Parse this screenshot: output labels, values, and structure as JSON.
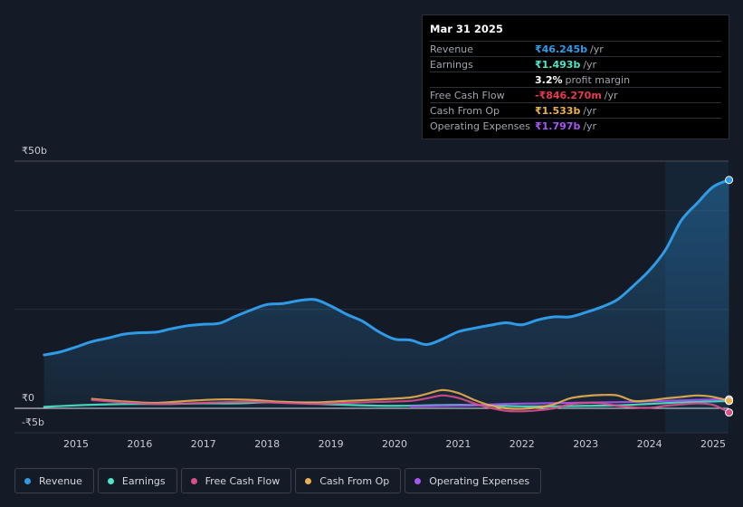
{
  "tooltip": {
    "date": "Mar 31 2025",
    "rows": [
      {
        "label": "Revenue",
        "value": "₹46.245b",
        "unit": "/yr",
        "color": "#2f9ae6"
      },
      {
        "label": "Earnings",
        "value": "₹1.493b",
        "unit": "/yr",
        "color": "#4ee5c9"
      },
      {
        "label": "",
        "value": "3.2%",
        "unit": "profit margin",
        "color": "#ffffff"
      },
      {
        "label": "Free Cash Flow",
        "value": "-₹846.270m",
        "unit": "/yr",
        "color": "#e8384f"
      },
      {
        "label": "Cash From Op",
        "value": "₹1.533b",
        "unit": "/yr",
        "color": "#e9b04f"
      },
      {
        "label": "Operating Expenses",
        "value": "₹1.797b",
        "unit": "/yr",
        "color": "#a855f7"
      }
    ]
  },
  "legend": [
    {
      "label": "Revenue",
      "color": "#2f9ae6"
    },
    {
      "label": "Earnings",
      "color": "#4ee5c9"
    },
    {
      "label": "Free Cash Flow",
      "color": "#d94f8c"
    },
    {
      "label": "Cash From Op",
      "color": "#e9b04f"
    },
    {
      "label": "Operating Expenses",
      "color": "#a855f7"
    }
  ],
  "chart_data": {
    "type": "line",
    "title": "",
    "y_tick_labels": [
      "₹50b",
      "₹0",
      "-₹5b"
    ],
    "y_ticks": [
      50,
      0,
      -5
    ],
    "ylim": [
      -5,
      50
    ],
    "xlim": [
      2014.5,
      2025.25
    ],
    "x_ticks": [
      2015,
      2016,
      2017,
      2018,
      2019,
      2020,
      2021,
      2022,
      2023,
      2024,
      2025
    ],
    "x_tick_labels": [
      "2015",
      "2016",
      "2017",
      "2018",
      "2019",
      "2020",
      "2021",
      "2022",
      "2023",
      "2024",
      "2025"
    ],
    "forecast_shade_start": 2024.25,
    "series": [
      {
        "name": "Revenue",
        "color": "#2f9ae6",
        "area": true,
        "x": [
          2014.5,
          2014.75,
          2015.0,
          2015.25,
          2015.5,
          2015.75,
          2016.0,
          2016.25,
          2016.5,
          2016.75,
          2017.0,
          2017.25,
          2017.5,
          2017.75,
          2018.0,
          2018.25,
          2018.5,
          2018.75,
          2019.0,
          2019.25,
          2019.5,
          2019.75,
          2020.0,
          2020.25,
          2020.5,
          2020.75,
          2021.0,
          2021.25,
          2021.5,
          2021.75,
          2022.0,
          2022.25,
          2022.5,
          2022.75,
          2023.0,
          2023.25,
          2023.5,
          2023.75,
          2024.0,
          2024.25,
          2024.5,
          2024.75,
          2025.0,
          2025.25
        ],
        "y": [
          10.8,
          11.4,
          12.4,
          13.5,
          14.2,
          15.0,
          15.3,
          15.4,
          16.1,
          16.7,
          17.0,
          17.2,
          18.6,
          19.9,
          21.0,
          21.2,
          21.8,
          22.0,
          20.7,
          19.0,
          17.6,
          15.5,
          14.0,
          13.8,
          12.9,
          14.0,
          15.5,
          16.2,
          16.8,
          17.3,
          16.9,
          17.9,
          18.5,
          18.5,
          19.4,
          20.5,
          22.0,
          24.8,
          27.9,
          32.0,
          38.0,
          41.5,
          44.8,
          46.2
        ]
      },
      {
        "name": "Earnings",
        "color": "#4ee5c9",
        "area": false,
        "x": [
          2014.5,
          2015.0,
          2015.5,
          2016.0,
          2016.5,
          2017.0,
          2017.5,
          2018.0,
          2018.5,
          2019.0,
          2019.5,
          2020.0,
          2020.5,
          2021.0,
          2021.5,
          2022.0,
          2022.5,
          2023.0,
          2023.5,
          2024.0,
          2024.5,
          2025.0,
          2025.25
        ],
        "y": [
          0.3,
          0.6,
          0.8,
          0.9,
          0.9,
          1.0,
          1.0,
          1.2,
          1.1,
          0.8,
          0.6,
          0.5,
          0.6,
          0.7,
          0.6,
          0.4,
          0.4,
          0.5,
          0.6,
          0.9,
          1.2,
          1.4,
          1.49
        ]
      },
      {
        "name": "Free Cash Flow",
        "color": "#d94f8c",
        "area": false,
        "x": [
          2015.25,
          2015.75,
          2016.25,
          2016.75,
          2017.25,
          2017.75,
          2018.25,
          2018.75,
          2019.25,
          2019.75,
          2020.25,
          2020.5,
          2020.75,
          2021.0,
          2021.25,
          2021.5,
          2021.75,
          2022.0,
          2022.25,
          2022.5,
          2022.75,
          2023.0,
          2023.25,
          2023.5,
          2023.75,
          2024.0,
          2024.25,
          2024.5,
          2024.75,
          2025.0,
          2025.25
        ],
        "y": [
          1.7,
          1.2,
          0.9,
          1.0,
          1.2,
          1.3,
          1.1,
          0.9,
          1.1,
          1.3,
          1.5,
          2.0,
          2.6,
          2.1,
          1.0,
          0.1,
          -0.5,
          -0.6,
          -0.4,
          0.0,
          0.8,
          1.1,
          1.0,
          0.5,
          0.2,
          0.1,
          0.5,
          0.8,
          1.0,
          0.7,
          -0.85
        ]
      },
      {
        "name": "Cash From Op",
        "color": "#e9b04f",
        "area": false,
        "x": [
          2015.25,
          2015.75,
          2016.25,
          2016.75,
          2017.25,
          2017.75,
          2018.25,
          2018.75,
          2019.25,
          2019.75,
          2020.25,
          2020.5,
          2020.75,
          2021.0,
          2021.25,
          2021.5,
          2021.75,
          2022.0,
          2022.25,
          2022.5,
          2022.75,
          2023.0,
          2023.25,
          2023.5,
          2023.75,
          2024.0,
          2024.25,
          2024.5,
          2024.75,
          2025.0,
          2025.25
        ],
        "y": [
          1.9,
          1.4,
          1.1,
          1.5,
          1.8,
          1.7,
          1.3,
          1.2,
          1.5,
          1.8,
          2.2,
          2.9,
          3.7,
          3.1,
          1.7,
          0.6,
          0.0,
          -0.1,
          0.2,
          0.8,
          2.0,
          2.5,
          2.7,
          2.6,
          1.5,
          1.6,
          2.0,
          2.3,
          2.6,
          2.3,
          1.53
        ]
      },
      {
        "name": "Operating Expenses",
        "color": "#a855f7",
        "area": false,
        "x": [
          2020.25,
          2020.75,
          2021.25,
          2021.75,
          2022.25,
          2022.75,
          2023.25,
          2023.75,
          2024.25,
          2024.75,
          2025.0,
          2025.25
        ],
        "y": [
          0.4,
          0.5,
          0.6,
          0.9,
          1.0,
          1.1,
          1.2,
          1.3,
          1.5,
          1.7,
          1.8,
          1.8
        ]
      }
    ]
  }
}
